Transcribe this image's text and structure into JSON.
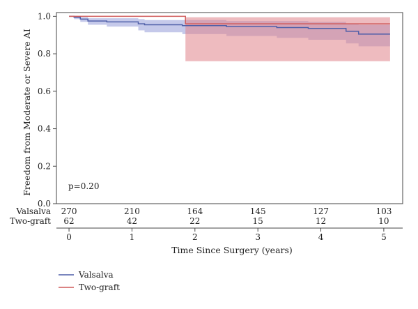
{
  "chart_data": {
    "type": "line",
    "subtype": "kaplan-meier",
    "xlabel": "Time Since Surgery (years)",
    "ylabel": "Freedom from Moderate or Severe AI",
    "xlim": [
      -0.2,
      5.3
    ],
    "ylim": [
      0.0,
      1.02
    ],
    "x_ticks": [
      0,
      1,
      2,
      3,
      4,
      5
    ],
    "y_ticks": [
      0.0,
      0.2,
      0.4,
      0.6,
      0.8,
      1.0
    ],
    "y_tick_labels": [
      "0.0",
      "0.2",
      "0.4",
      "0.6",
      "0.8",
      "1.0"
    ],
    "grid": false,
    "legend_position": "bottom-left",
    "annotation": "p=0.20",
    "series": [
      {
        "name": "Valsalva",
        "color": "#4f5fa8",
        "band_color": "#8c93d6",
        "steps": [
          [
            0.0,
            1.0
          ],
          [
            0.08,
            0.995
          ],
          [
            0.18,
            0.985
          ],
          [
            0.3,
            0.975
          ],
          [
            0.6,
            0.97
          ],
          [
            1.1,
            0.96
          ],
          [
            1.2,
            0.955
          ],
          [
            1.8,
            0.95
          ],
          [
            2.5,
            0.945
          ],
          [
            3.3,
            0.94
          ],
          [
            3.8,
            0.935
          ],
          [
            4.4,
            0.92
          ],
          [
            4.6,
            0.905
          ],
          [
            5.1,
            0.905
          ]
        ],
        "lower": [
          [
            0.0,
            1.0
          ],
          [
            0.08,
            0.985
          ],
          [
            0.18,
            0.97
          ],
          [
            0.3,
            0.955
          ],
          [
            0.6,
            0.945
          ],
          [
            1.1,
            0.925
          ],
          [
            1.2,
            0.915
          ],
          [
            1.8,
            0.905
          ],
          [
            2.5,
            0.895
          ],
          [
            3.3,
            0.885
          ],
          [
            3.8,
            0.875
          ],
          [
            4.4,
            0.855
          ],
          [
            4.6,
            0.84
          ],
          [
            5.1,
            0.84
          ]
        ],
        "upper": [
          [
            0.0,
            1.0
          ],
          [
            0.08,
            1.0
          ],
          [
            0.18,
            0.995
          ],
          [
            0.3,
            0.99
          ],
          [
            0.6,
            0.99
          ],
          [
            1.1,
            0.985
          ],
          [
            1.2,
            0.98
          ],
          [
            1.8,
            0.98
          ],
          [
            2.5,
            0.975
          ],
          [
            3.3,
            0.975
          ],
          [
            3.8,
            0.97
          ],
          [
            4.4,
            0.96
          ],
          [
            4.6,
            0.955
          ],
          [
            5.1,
            0.955
          ]
        ]
      },
      {
        "name": "Two-graft",
        "color": "#cf5a5a",
        "band_color": "#e0848a",
        "steps": [
          [
            0.0,
            1.0
          ],
          [
            1.85,
            0.96
          ],
          [
            5.1,
            0.96
          ]
        ],
        "lower": [
          [
            0.0,
            1.0
          ],
          [
            1.85,
            0.76
          ],
          [
            5.1,
            0.76
          ]
        ],
        "upper": [
          [
            0.0,
            1.0
          ],
          [
            1.85,
            0.995
          ],
          [
            5.1,
            0.995
          ]
        ]
      }
    ],
    "risk_table": {
      "times": [
        0,
        1,
        2,
        3,
        4,
        5
      ],
      "rows": [
        {
          "label": "Valsalva",
          "values": [
            "270",
            "210",
            "164",
            "145",
            "127",
            "103"
          ]
        },
        {
          "label": "Two-graft",
          "values": [
            "62",
            "42",
            "22",
            "15",
            "12",
            "10"
          ]
        }
      ]
    }
  }
}
